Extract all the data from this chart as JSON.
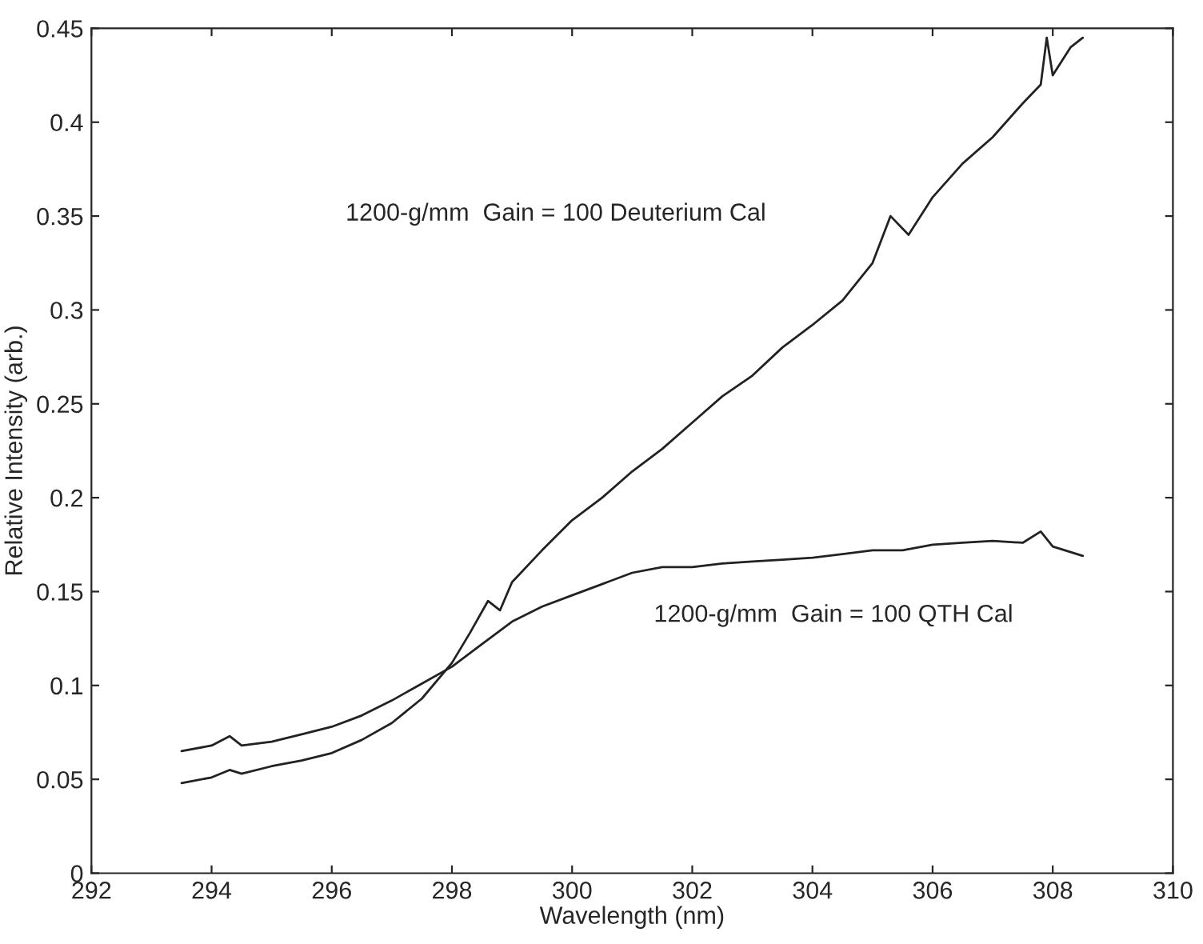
{
  "chart_data": {
    "type": "line",
    "xlabel": "Wavelength (nm)",
    "ylabel": "Relative Intensity (arb.)",
    "xlim": [
      292,
      310
    ],
    "xticks": [
      292,
      294,
      296,
      298,
      300,
      302,
      304,
      306,
      308,
      310
    ],
    "ylim": [
      0,
      0.45
    ],
    "yticks": [
      0,
      0.05,
      0.1,
      0.15,
      0.2,
      0.25,
      0.3,
      0.35,
      0.4,
      0.45
    ],
    "grid": false,
    "legend": false,
    "line_style": "solid",
    "marker": "none",
    "series": [
      {
        "color": "#222222",
        "x": [
          293.5,
          294,
          294.3,
          294.5,
          295,
          295.5,
          296,
          296.5,
          297,
          297.5,
          298,
          298.3,
          298.6,
          298.8,
          299,
          299.5,
          300,
          300.5,
          301,
          301.5,
          302,
          302.5,
          303,
          303.5,
          304,
          304.5,
          305,
          305.3,
          305.6,
          306,
          306.5,
          307,
          307.5,
          307.8,
          307.9,
          308,
          308.3,
          308.5
        ],
        "values": [
          0.048,
          0.051,
          0.055,
          0.053,
          0.057,
          0.06,
          0.064,
          0.071,
          0.08,
          0.093,
          0.112,
          0.128,
          0.145,
          0.14,
          0.155,
          0.172,
          0.188,
          0.2,
          0.214,
          0.226,
          0.24,
          0.254,
          0.265,
          0.28,
          0.292,
          0.305,
          0.325,
          0.35,
          0.34,
          0.36,
          0.378,
          0.392,
          0.41,
          0.42,
          0.445,
          0.425,
          0.44,
          0.445
        ]
      },
      {
        "color": "#222222",
        "x": [
          293.5,
          294,
          294.3,
          294.5,
          295,
          295.5,
          296,
          296.5,
          297,
          297.5,
          298,
          298.5,
          299,
          299.5,
          300,
          300.5,
          301,
          301.5,
          302,
          302.5,
          303,
          303.5,
          304,
          304.5,
          305,
          305.5,
          306,
          306.5,
          307,
          307.5,
          307.8,
          308,
          308.5
        ],
        "values": [
          0.065,
          0.068,
          0.073,
          0.068,
          0.07,
          0.074,
          0.078,
          0.084,
          0.092,
          0.101,
          0.11,
          0.122,
          0.134,
          0.142,
          0.148,
          0.154,
          0.16,
          0.163,
          0.163,
          0.165,
          0.166,
          0.167,
          0.168,
          0.17,
          0.172,
          0.172,
          0.175,
          0.176,
          0.177,
          0.176,
          0.182,
          0.174,
          0.169
        ]
      }
    ],
    "annotations": [
      "1200-g/mm  Gain = 100 Deuterium Cal",
      "1200-g/mm  Gain = 100 QTH Cal"
    ]
  }
}
